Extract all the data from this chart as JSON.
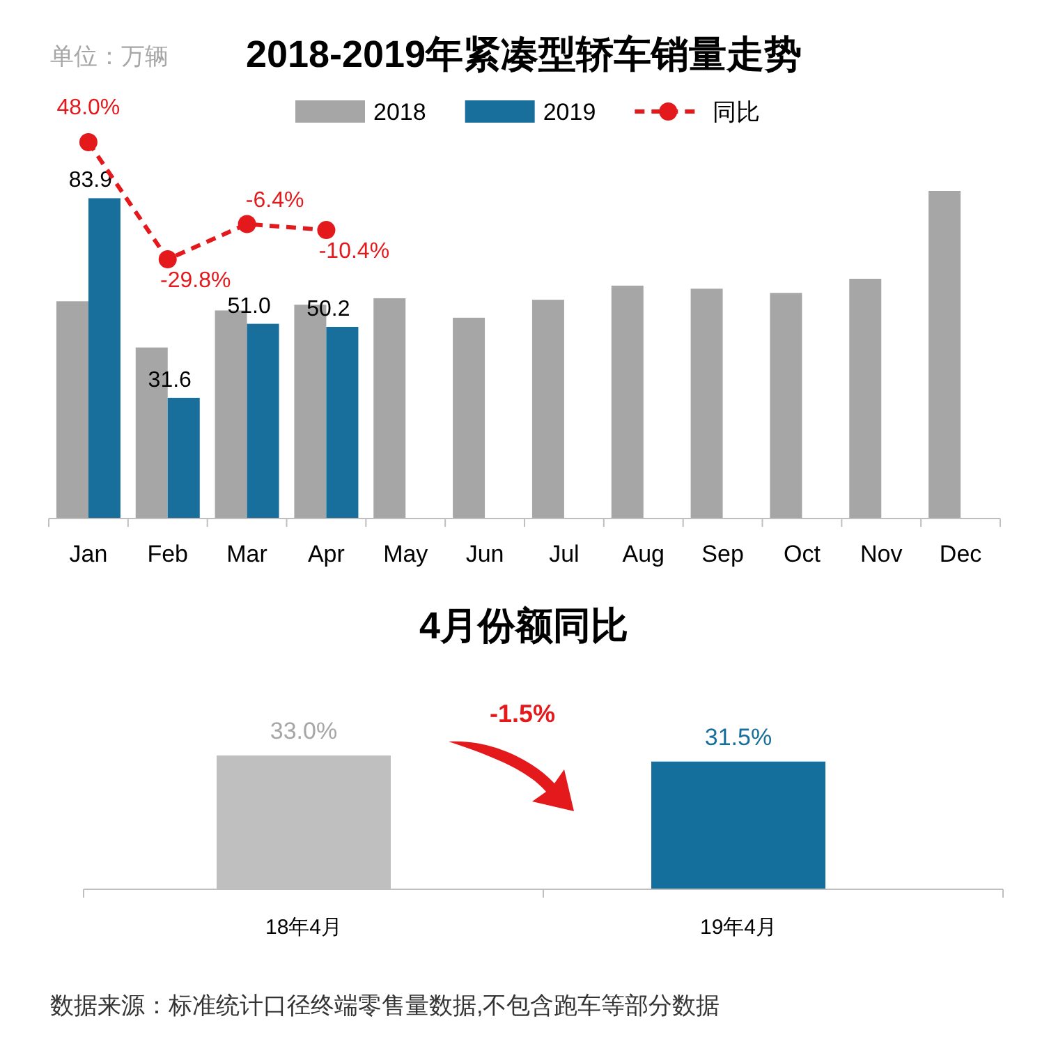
{
  "chart_data": [
    {
      "type": "bar",
      "title": "2018-2019年紧凑型轿车销量走势",
      "annotations": [
        "单位：万辆"
      ],
      "legend": "top",
      "categories": [
        "Jan",
        "Feb",
        "Mar",
        "Apr",
        "May",
        "Jun",
        "Jul",
        "Aug",
        "Sep",
        "Oct",
        "Nov",
        "Dec"
      ],
      "series": [
        {
          "name": "2018",
          "color": "#a6a6a6",
          "values": [
            56.9,
            44.8,
            54.5,
            56.0,
            57.7,
            52.6,
            57.3,
            61.0,
            60.2,
            59.1,
            62.8,
            85.8
          ]
        },
        {
          "name": "2019",
          "color": "#186f9c",
          "values": [
            83.9,
            31.6,
            51.0,
            50.2,
            null,
            null,
            null,
            null,
            null,
            null,
            null,
            null
          ],
          "value_labels": [
            "83.9",
            "31.6",
            "51.0",
            "50.2",
            null,
            null,
            null,
            null,
            null,
            null,
            null,
            null
          ]
        },
        {
          "name": "同比",
          "type": "line",
          "axis": "y2",
          "color": "#e3191c",
          "line_style": "dashed",
          "marker": "circle",
          "values": [
            48.0,
            -29.8,
            -6.4,
            -10.4,
            null,
            null,
            null,
            null,
            null,
            null,
            null,
            null
          ],
          "value_labels": [
            "48.0%",
            "-29.8%",
            "-6.4%",
            "-10.4%",
            null,
            null,
            null,
            null,
            null,
            null,
            null,
            null
          ]
        }
      ]
    },
    {
      "type": "bar",
      "title": "4月份额同比",
      "categories": [
        "18年4月",
        "19年4月"
      ],
      "values": [
        33.0,
        31.5
      ],
      "colors": [
        "#bfbfbf",
        "#156f9c"
      ],
      "value_labels": [
        "33.0%",
        "31.5%"
      ],
      "annotations": [
        "-1.5%",
        "数据来源：标准统计口径终端零售量数据,不包含跑车等部分数据"
      ]
    }
  ]
}
